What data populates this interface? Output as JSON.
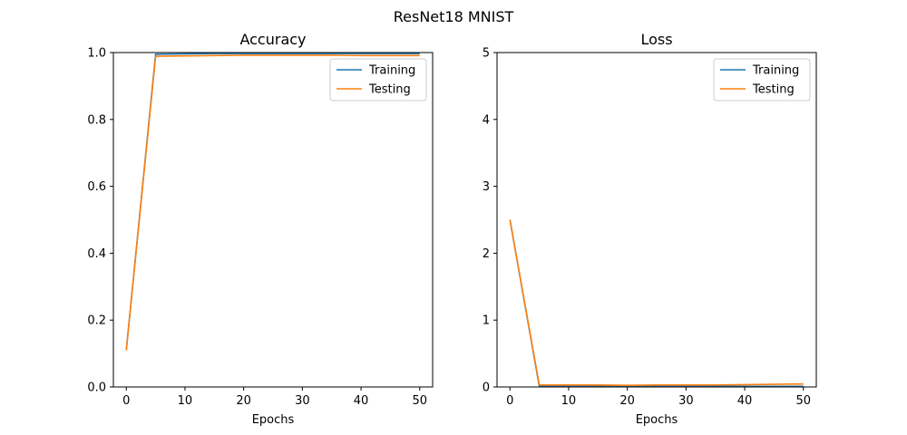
{
  "figure": {
    "title": "ResNet18 MNIST"
  },
  "chart_data": [
    {
      "type": "line",
      "title": "Accuracy",
      "xlabel": "Epochs",
      "ylabel": "",
      "xlim": [
        -2.2,
        52.2
      ],
      "ylim": [
        0,
        1
      ],
      "xticks": [
        0,
        10,
        20,
        30,
        40,
        50
      ],
      "yticks": [
        0.0,
        0.2,
        0.4,
        0.6,
        0.8,
        1.0
      ],
      "xtick_labels": [
        "0",
        "10",
        "20",
        "30",
        "40",
        "50"
      ],
      "ytick_labels": [
        "0.0",
        "0.2",
        "0.4",
        "0.6",
        "0.8",
        "1.0"
      ],
      "legend": "top-right",
      "grid": false,
      "series": [
        {
          "name": "Training",
          "color": "#1f77b4",
          "x": [
            0,
            5,
            10,
            15,
            20,
            25,
            30,
            35,
            40,
            45,
            50
          ],
          "y": [
            0.11,
            0.995,
            0.996,
            0.997,
            0.997,
            0.997,
            0.997,
            0.997,
            0.997,
            0.997,
            0.997
          ]
        },
        {
          "name": "Testing",
          "color": "#ff7f0e",
          "x": [
            0,
            5,
            10,
            15,
            20,
            25,
            30,
            35,
            40,
            45,
            50
          ],
          "y": [
            0.11,
            0.989,
            0.99,
            0.991,
            0.992,
            0.992,
            0.992,
            0.992,
            0.991,
            0.991,
            0.991
          ]
        }
      ]
    },
    {
      "type": "line",
      "title": "Loss",
      "xlabel": "Epochs",
      "ylabel": "",
      "xlim": [
        -2.2,
        52.2
      ],
      "ylim": [
        0,
        5
      ],
      "xticks": [
        0,
        10,
        20,
        30,
        40,
        50
      ],
      "yticks": [
        0,
        1,
        2,
        3,
        4,
        5
      ],
      "xtick_labels": [
        "0",
        "10",
        "20",
        "30",
        "40",
        "50"
      ],
      "ytick_labels": [
        "0",
        "1",
        "2",
        "3",
        "4",
        "5"
      ],
      "legend": "top-right",
      "grid": false,
      "series": [
        {
          "name": "Training",
          "color": "#1f77b4",
          "x": [
            0,
            5,
            10,
            15,
            20,
            25,
            30,
            35,
            40,
            45,
            50
          ],
          "y": [
            2.5,
            0.01,
            0.01,
            0.01,
            0.01,
            0.01,
            0.01,
            0.01,
            0.01,
            0.01,
            0.01
          ]
        },
        {
          "name": "Testing",
          "color": "#ff7f0e",
          "x": [
            0,
            5,
            10,
            15,
            20,
            25,
            30,
            35,
            40,
            45,
            50
          ],
          "y": [
            2.5,
            0.03,
            0.03,
            0.03,
            0.025,
            0.03,
            0.03,
            0.03,
            0.035,
            0.04,
            0.045
          ]
        }
      ]
    }
  ]
}
